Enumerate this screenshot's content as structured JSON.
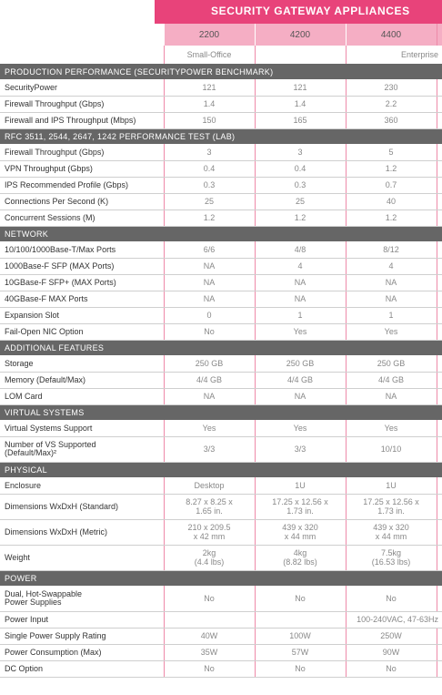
{
  "header": {
    "title": "SECURITY GATEWAY APPLIANCES",
    "models": [
      "2200",
      "4200",
      "4400"
    ],
    "segments": [
      "Small-Office",
      "Enterprise"
    ]
  },
  "sections": {
    "production": {
      "title": "PRODUCTION PERFORMANCE (SECURITYPOWER BENCHMARK)",
      "rows": [
        {
          "label": "SecurityPower",
          "values": [
            "121",
            "121",
            "230"
          ]
        },
        {
          "label": "Firewall Throughput (Gbps)",
          "values": [
            "1.4",
            "1.4",
            "2.2"
          ]
        },
        {
          "label": "Firewall and IPS Throughput (Mbps)",
          "values": [
            "150",
            "165",
            "360"
          ]
        }
      ]
    },
    "rfc": {
      "title": "RFC 3511, 2544, 2647, 1242 PERFORMANCE TEST (LAB)",
      "rows": [
        {
          "label": "Firewall Throughput (Gbps)",
          "values": [
            "3",
            "3",
            "5"
          ]
        },
        {
          "label": "VPN Throughput (Gbps)",
          "values": [
            "0.4",
            "0.4",
            "1.2"
          ]
        },
        {
          "label": "IPS Recommended Profile (Gbps)",
          "values": [
            "0.3",
            "0.3",
            "0.7"
          ]
        },
        {
          "label": "Connections Per Second (K)",
          "values": [
            "25",
            "25",
            "40"
          ]
        },
        {
          "label": "Concurrent Sessions (M)",
          "values": [
            "1.2",
            "1.2",
            "1.2"
          ]
        }
      ]
    },
    "network": {
      "title": "NETWORK",
      "rows": [
        {
          "label": "10/100/1000Base-T/Max Ports",
          "values": [
            "6/6",
            "4/8",
            "8/12"
          ]
        },
        {
          "label": "1000Base-F SFP (MAX Ports)",
          "values": [
            "NA",
            "4",
            "4"
          ]
        },
        {
          "label": "10GBase-F SFP+ (MAX Ports)",
          "values": [
            "NA",
            "NA",
            "NA"
          ]
        },
        {
          "label": "40GBase-F MAX Ports",
          "values": [
            "NA",
            "NA",
            "NA"
          ]
        },
        {
          "label": "Expansion Slot",
          "values": [
            "0",
            "1",
            "1"
          ]
        },
        {
          "label": "Fail-Open NIC Option",
          "values": [
            "No",
            "Yes",
            "Yes"
          ]
        }
      ]
    },
    "additional": {
      "title": "ADDITIONAL FEATURES",
      "rows": [
        {
          "label": "Storage",
          "values": [
            "250 GB",
            "250 GB",
            "250 GB"
          ]
        },
        {
          "label": "Memory (Default/Max)",
          "values": [
            "4/4 GB",
            "4/4 GB",
            "4/4 GB"
          ]
        },
        {
          "label": "LOM Card",
          "values": [
            "NA",
            "NA",
            "NA"
          ]
        }
      ]
    },
    "virtual": {
      "title": "VIRTUAL SYSTEMS",
      "rows": [
        {
          "label": "Virtual Systems Support",
          "values": [
            "Yes",
            "Yes",
            "Yes"
          ]
        },
        {
          "label_lines": [
            "Number of VS Supported",
            "(Default/Max)²"
          ],
          "values": [
            "3/3",
            "3/3",
            "10/10"
          ]
        }
      ]
    },
    "physical": {
      "title": "PHYSICAL",
      "rows": [
        {
          "label": "Enclosure",
          "values": [
            "Desktop",
            "1U",
            "1U"
          ]
        },
        {
          "label": "Dimensions WxDxH (Standard)",
          "values": [
            [
              "8.27 x 8.25 x",
              "1.65 in."
            ],
            [
              "17.25 x 12.56 x",
              "1.73 in."
            ],
            [
              "17.25 x 12.56 x",
              "1.73 in."
            ]
          ]
        },
        {
          "label": "Dimensions WxDxH (Metric)",
          "values": [
            [
              "210 x 209.5",
              "x 42 mm"
            ],
            [
              "439 x 320",
              "x 44 mm"
            ],
            [
              "439 x 320",
              "x 44 mm"
            ]
          ]
        },
        {
          "label": "Weight",
          "values": [
            [
              "2kg",
              "(4.4 lbs)"
            ],
            [
              "4kg",
              "(8.82 lbs)"
            ],
            [
              "7.5kg",
              "(16.53 lbs)"
            ]
          ]
        }
      ]
    },
    "power": {
      "title": "POWER",
      "rows": [
        {
          "label_lines": [
            "Dual, Hot-Swappable",
            "Power Supplies"
          ],
          "values": [
            "No",
            "No",
            "No"
          ]
        },
        {
          "label": "Power Input",
          "span_value": "100-240VAC, 47-63Hz"
        },
        {
          "label": "Single Power Supply Rating",
          "values": [
            "40W",
            "100W",
            "250W"
          ]
        },
        {
          "label": "Power Consumption (Max)",
          "values": [
            "35W",
            "57W",
            "90W"
          ]
        },
        {
          "label": "DC Option",
          "values": [
            "No",
            "No",
            "No"
          ]
        }
      ]
    }
  }
}
